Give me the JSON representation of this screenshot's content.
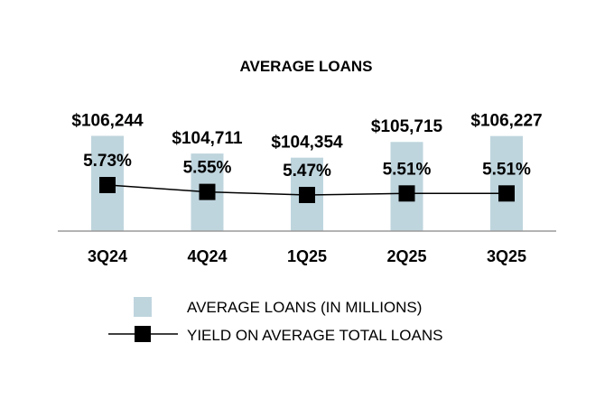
{
  "chart_data": {
    "type": "bar",
    "title": "AVERAGE LOANS",
    "categories": [
      "3Q24",
      "4Q24",
      "1Q25",
      "2Q25",
      "3Q25"
    ],
    "series": [
      {
        "name": "AVERAGE LOANS (IN MILLIONS)",
        "kind": "bar",
        "values": [
          106244,
          104711,
          104354,
          105715,
          106227
        ],
        "labels": [
          "$106,244",
          "$104,711",
          "$104,354",
          "$105,715",
          "$106,227"
        ],
        "color": "#bfd5de"
      },
      {
        "name": "YIELD ON AVERAGE TOTAL LOANS",
        "kind": "line",
        "values": [
          5.73,
          5.55,
          5.47,
          5.51,
          5.51
        ],
        "labels": [
          "5.73%",
          "5.55%",
          "5.47%",
          "5.51%",
          "5.51%"
        ],
        "color": "#000000"
      }
    ],
    "grid": false,
    "legend_position": "bottom"
  }
}
